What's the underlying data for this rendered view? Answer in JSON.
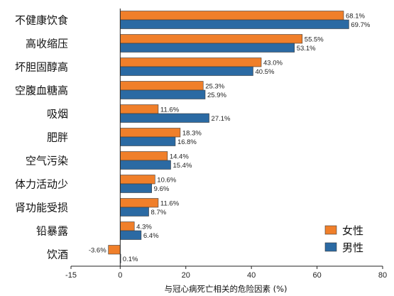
{
  "chart_data": {
    "type": "bar",
    "orientation": "horizontal",
    "categories": [
      "不健康饮食",
      "高收缩压",
      "坏胆固醇高",
      "空腹血糖高",
      "吸烟",
      "肥胖",
      "空气污染",
      "体力活动少",
      "肾功能受损",
      "铅暴露",
      "饮酒"
    ],
    "series": [
      {
        "name": "女性",
        "color": "#f07f2a",
        "values": [
          68.1,
          55.5,
          43.0,
          25.3,
          11.6,
          18.3,
          14.4,
          10.6,
          11.6,
          4.3,
          -3.6
        ],
        "labels": [
          "68.1%",
          "55.5%",
          "43.0%",
          "25.3%",
          "11.6%",
          "18.3%",
          "14.4%",
          "10.6%",
          "11.6%",
          "4.3%",
          "-3.6%"
        ]
      },
      {
        "name": "男性",
        "color": "#2b6aa3",
        "values": [
          69.7,
          53.1,
          40.5,
          25.9,
          27.1,
          16.8,
          15.4,
          9.6,
          8.7,
          6.4,
          0.1
        ],
        "labels": [
          "69.7%",
          "53.1%",
          "40.5%",
          "25.9%",
          "27.1%",
          "16.8%",
          "15.4%",
          "9.6%",
          "8.7%",
          "6.4%",
          "0.1%"
        ]
      }
    ],
    "xlabel": "与冠心病死亡相关的危险因素 (%)",
    "xlim": [
      -15,
      80
    ],
    "xticks": [
      -15,
      0,
      20,
      40,
      60,
      80
    ],
    "xtick_labels": [
      "-15",
      "0",
      "20",
      "40",
      "60",
      "80"
    ],
    "legend_position": "bottom-right",
    "grid": false
  }
}
